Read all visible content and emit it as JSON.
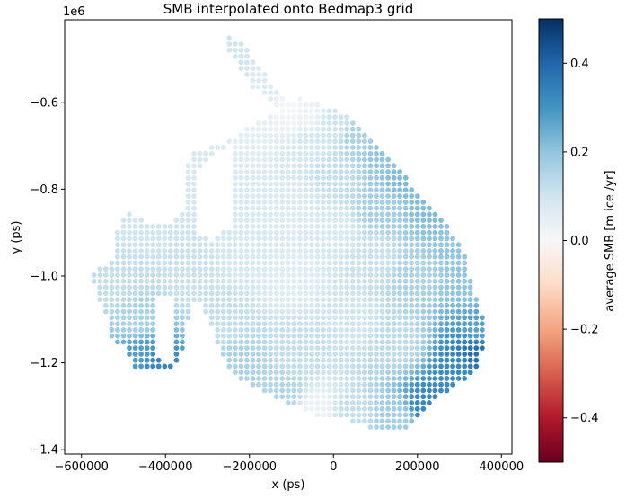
{
  "chart_data": {
    "type": "scatter",
    "title": "SMB interpolated onto Bedmap3 grid",
    "xlabel": "x (ps)",
    "ylabel": "y (ps)",
    "y_offset_label": "1e6",
    "xlim": [
      -640000,
      425000
    ],
    "ylim": [
      -1410000,
      -410000
    ],
    "x_ticks": [
      -600000,
      -400000,
      -200000,
      0,
      200000,
      400000
    ],
    "x_tick_labels": [
      "−600000",
      "−400000",
      "−200000",
      "0",
      "200000",
      "400000"
    ],
    "y_ticks": [
      -1.4,
      -1.2,
      -1.0,
      -0.8,
      -0.6
    ],
    "y_tick_labels": [
      "−1.4",
      "−1.2",
      "−1.0",
      "−0.8",
      "−0.6"
    ],
    "grid": false,
    "grid_spacing": 14000,
    "colorbar": {
      "label": "average SMB [m ice /yr]",
      "min": -0.5,
      "max": 0.5,
      "colormap": "RdBu",
      "ticks": [
        -0.4,
        -0.2,
        0.0,
        0.2,
        0.4
      ],
      "tick_labels": [
        "−0.4",
        "−0.2",
        "0.0",
        "0.2",
        "0.4"
      ],
      "colormap_stops": [
        "#67001f",
        "#b2182b",
        "#d6604d",
        "#f4a582",
        "#fddbc7",
        "#f7f7f7",
        "#d1e5f0",
        "#92c5de",
        "#4393c3",
        "#2166ac",
        "#053061"
      ]
    },
    "region_outline": [
      [
        -250000,
        -450000
      ],
      [
        -215000,
        -460000
      ],
      [
        -185000,
        -510000
      ],
      [
        -155000,
        -545000
      ],
      [
        -135000,
        -575000
      ],
      [
        -110000,
        -600000
      ],
      [
        -80000,
        -590000
      ],
      [
        -40000,
        -600000
      ],
      [
        30000,
        -630000
      ],
      [
        90000,
        -680000
      ],
      [
        140000,
        -730000
      ],
      [
        185000,
        -790000
      ],
      [
        230000,
        -840000
      ],
      [
        270000,
        -885000
      ],
      [
        305000,
        -925000
      ],
      [
        320000,
        -985000
      ],
      [
        330000,
        -1020000
      ],
      [
        345000,
        -1060000
      ],
      [
        358000,
        -1100000
      ],
      [
        362000,
        -1150000
      ],
      [
        352000,
        -1180000
      ],
      [
        340000,
        -1210000
      ],
      [
        320000,
        -1240000
      ],
      [
        290000,
        -1250000
      ],
      [
        250000,
        -1280000
      ],
      [
        220000,
        -1315000
      ],
      [
        195000,
        -1330000
      ],
      [
        170000,
        -1350000
      ],
      [
        120000,
        -1360000
      ],
      [
        80000,
        -1345000
      ],
      [
        20000,
        -1330000
      ],
      [
        -40000,
        -1320000
      ],
      [
        -110000,
        -1295000
      ],
      [
        -150000,
        -1275000
      ],
      [
        -230000,
        -1235000
      ],
      [
        -270000,
        -1180000
      ],
      [
        -290000,
        -1110000
      ],
      [
        -320000,
        -1060000
      ],
      [
        -340000,
        -1070000
      ],
      [
        -355000,
        -1160000
      ],
      [
        -370000,
        -1200000
      ],
      [
        -400000,
        -1220000
      ],
      [
        -460000,
        -1220000
      ],
      [
        -480000,
        -1200000
      ],
      [
        -500000,
        -1165000
      ],
      [
        -530000,
        -1140000
      ],
      [
        -540000,
        -1090000
      ],
      [
        -560000,
        -1060000
      ],
      [
        -575000,
        -1000000
      ],
      [
        -565000,
        -980000
      ],
      [
        -540000,
        -975000
      ],
      [
        -520000,
        -960000
      ],
      [
        -510000,
        -860000
      ],
      [
        -480000,
        -855000
      ],
      [
        -440000,
        -880000
      ],
      [
        -400000,
        -880000
      ],
      [
        -370000,
        -870000
      ],
      [
        -350000,
        -820000
      ],
      [
        -350000,
        -740000
      ],
      [
        -330000,
        -710000
      ],
      [
        -280000,
        -700000
      ],
      [
        -250000,
        -690000
      ],
      [
        -215000,
        -670000
      ],
      [
        -195000,
        -650000
      ],
      [
        -160000,
        -640000
      ],
      [
        -135000,
        -620000
      ],
      [
        -150000,
        -605000
      ],
      [
        -165000,
        -580000
      ],
      [
        -190000,
        -570000
      ],
      [
        -205000,
        -540000
      ],
      [
        -230000,
        -510000
      ],
      [
        -250000,
        -480000
      ]
    ],
    "region_holes": [
      [
        [
          -280000,
          -710000
        ],
        [
          -240000,
          -700000
        ],
        [
          -235000,
          -880000
        ],
        [
          -290000,
          -920000
        ],
        [
          -330000,
          -900000
        ],
        [
          -320000,
          -760000
        ]
      ],
      [
        [
          -420000,
          -1040000
        ],
        [
          -380000,
          -1040000
        ],
        [
          -375000,
          -1200000
        ],
        [
          -420000,
          -1190000
        ]
      ],
      [
        [
          -330000,
          -1070000
        ],
        [
          -310000,
          -1060000
        ],
        [
          -300000,
          -1140000
        ],
        [
          -330000,
          -1140000
        ]
      ]
    ],
    "smb_anchor_points": [
      [
        -420000,
        -1205000,
        0.33
      ],
      [
        -460000,
        -1180000,
        0.28
      ],
      [
        -470000,
        -1100000,
        0.16
      ],
      [
        -540000,
        -1020000,
        0.12
      ],
      [
        -450000,
        -900000,
        0.1
      ],
      [
        -300000,
        -760000,
        0.08
      ],
      [
        -200000,
        -650000,
        0.05
      ],
      [
        -240000,
        -480000,
        0.1
      ],
      [
        -150000,
        -560000,
        0.07
      ],
      [
        -100000,
        -610000,
        0.01
      ],
      [
        -60000,
        -625000,
        0.03
      ],
      [
        0,
        -650000,
        0.1
      ],
      [
        60000,
        -680000,
        0.16
      ],
      [
        120000,
        -720000,
        0.2
      ],
      [
        170000,
        -780000,
        0.22
      ],
      [
        230000,
        -850000,
        0.22
      ],
      [
        290000,
        -920000,
        0.2
      ],
      [
        330000,
        -1020000,
        0.2
      ],
      [
        345000,
        -1120000,
        0.27
      ],
      [
        340000,
        -1180000,
        0.38
      ],
      [
        300000,
        -1220000,
        0.32
      ],
      [
        220000,
        -1300000,
        0.33
      ],
      [
        150000,
        -1330000,
        0.17
      ],
      [
        40000,
        -1320000,
        0.12
      ],
      [
        -40000,
        -1310000,
        0.03
      ],
      [
        -120000,
        -1270000,
        0.15
      ],
      [
        -230000,
        -1200000,
        0.16
      ],
      [
        -260000,
        -1110000,
        0.12
      ],
      [
        -100000,
        -1000000,
        0.06
      ],
      [
        0,
        -900000,
        0.08
      ],
      [
        100000,
        -950000,
        0.11
      ],
      [
        50000,
        -1100000,
        0.1
      ],
      [
        150000,
        -1150000,
        0.13
      ],
      [
        200000,
        -1000000,
        0.16
      ],
      [
        -100000,
        -850000,
        0.07
      ],
      [
        -200000,
        -950000,
        0.08
      ],
      [
        -350000,
        -1000000,
        0.11
      ],
      [
        -500000,
        -1000000,
        0.12
      ],
      [
        -80000,
        -1180000,
        0.12
      ],
      [
        120000,
        -850000,
        0.17
      ],
      [
        0,
        -760000,
        0.12
      ],
      [
        -50000,
        -700000,
        0.09
      ]
    ]
  }
}
